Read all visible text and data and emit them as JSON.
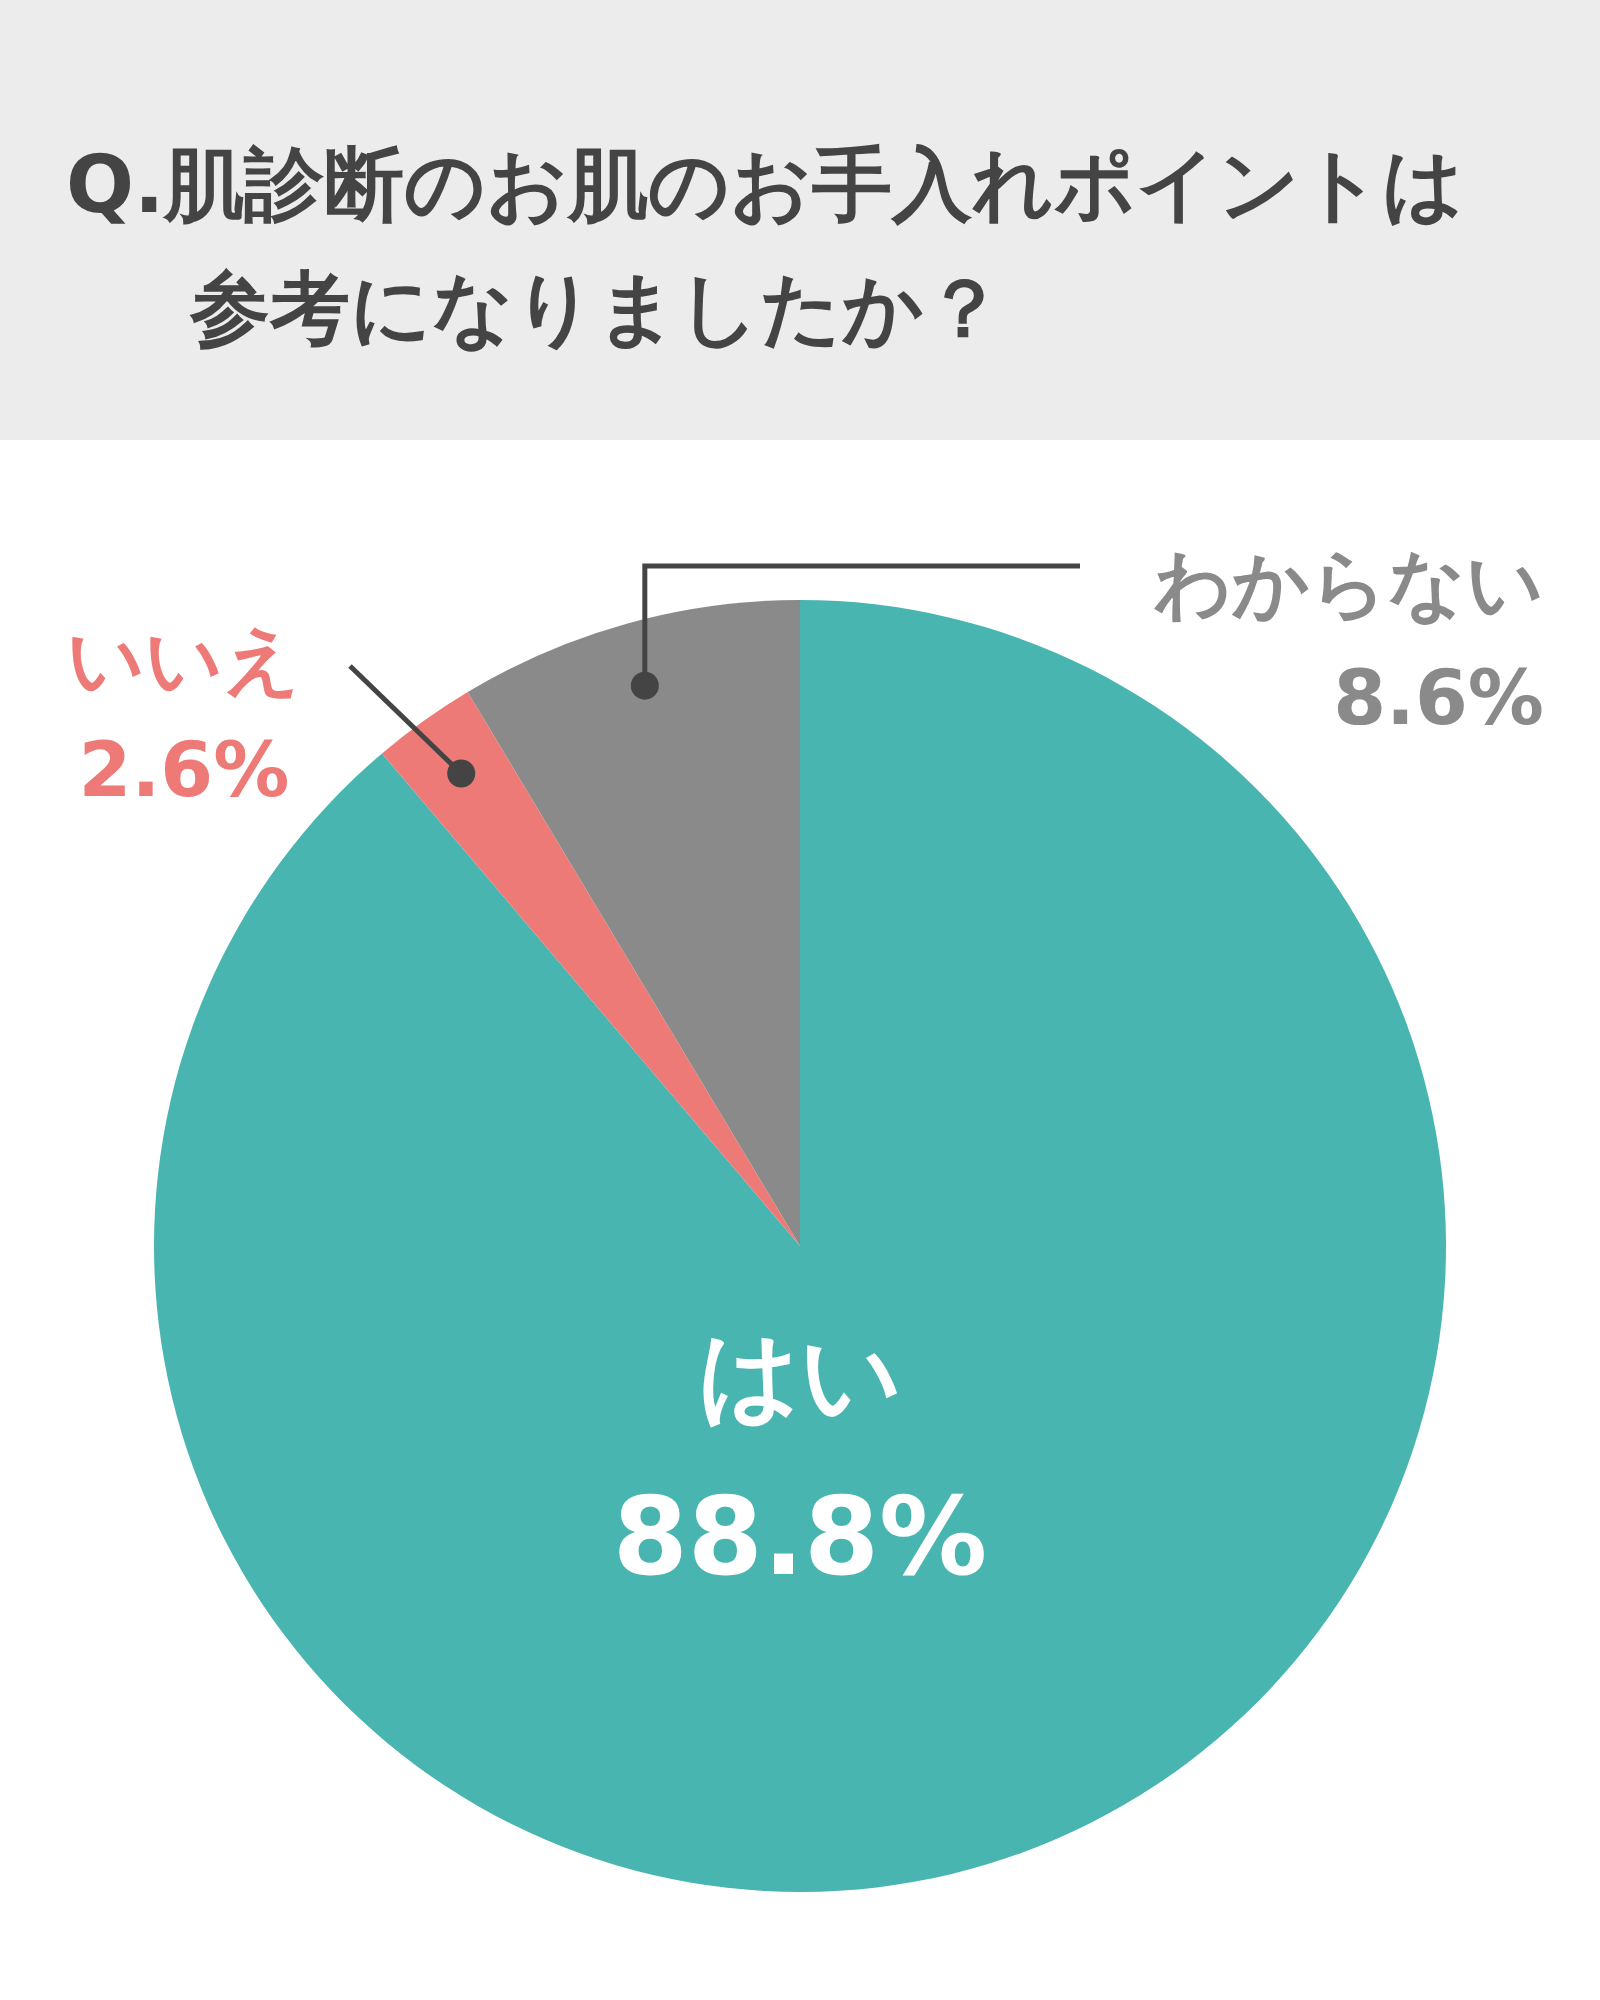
{
  "chart_data": {
    "type": "pie",
    "title": "Q.肌診断のお肌のお手入れポイントは参考になりましたか？",
    "categories": [
      "はい",
      "いいえ",
      "わからない"
    ],
    "values": [
      88.8,
      2.6,
      8.6
    ],
    "value_labels": [
      "88.8%",
      "2.6%",
      "8.6%"
    ],
    "colors": [
      "#48b5b1",
      "#ee7a78",
      "#8a8a8a"
    ]
  }
}
